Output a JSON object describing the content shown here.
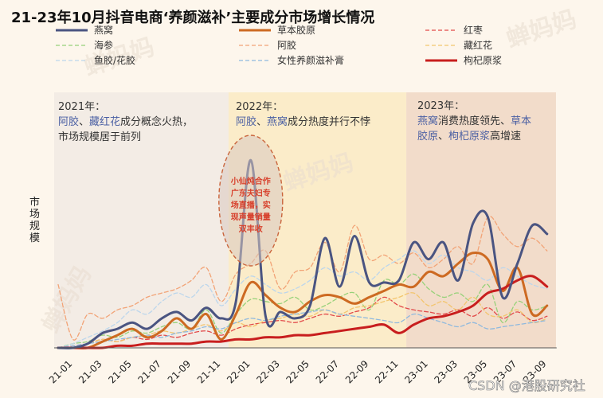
{
  "title": "21-23年10月抖音电商‘养颜滋补’主要成分市场增长情况",
  "ylabel": [
    "市",
    "场",
    "规",
    "模"
  ],
  "watermark": "CSDN @港股研究社",
  "bg_watermark": "蝉妈妈",
  "annotations": {
    "p2021": {
      "header": "2021年：",
      "segments": [
        [
          {
            "t": "阿胶",
            "c": "#4a5fa3"
          },
          {
            "t": "、",
            "c": "#333333"
          },
          {
            "t": "藏红花",
            "c": "#4a5fa3"
          },
          {
            "t": "成分概念火热，",
            "c": "#333333"
          }
        ],
        [
          {
            "t": "市场规模居于前列",
            "c": "#333333"
          }
        ]
      ]
    },
    "p2022": {
      "header": "2022年：",
      "segments": [
        [
          {
            "t": "阿胶",
            "c": "#4a5fa3"
          },
          {
            "t": "、",
            "c": "#333333"
          },
          {
            "t": "燕窝",
            "c": "#4a5fa3"
          },
          {
            "t": "成分热度并行不悖",
            "c": "#333333"
          }
        ]
      ]
    },
    "p2023": {
      "header": "2023年：",
      "segments": [
        [
          {
            "t": "燕窝",
            "c": "#4a5fa3"
          },
          {
            "t": "消费热度领先、",
            "c": "#333333"
          },
          {
            "t": "草本",
            "c": "#4a5fa3"
          }
        ],
        [
          {
            "t": "胶原",
            "c": "#4a5fa3"
          },
          {
            "t": "、",
            "c": "#333333"
          },
          {
            "t": "枸杞原浆",
            "c": "#4a5fa3"
          },
          {
            "t": "高增速",
            "c": "#333333"
          }
        ]
      ]
    },
    "bubble": [
      "小仙炖合作",
      "广东夫妇专",
      "场直播，实",
      "现声量销量",
      "双丰收"
    ]
  },
  "chart_data": {
    "type": "line",
    "title": "21-23年10月抖音电商‘养颜滋补’主要成分市场增长情况",
    "xlabel": "",
    "ylabel": "市场规模",
    "ylim": [
      0,
      100
    ],
    "x_count": 34,
    "x_ticks": [
      {
        "i": 0,
        "label": "21-01"
      },
      {
        "i": 2,
        "label": "21-03"
      },
      {
        "i": 4,
        "label": "21-05"
      },
      {
        "i": 6,
        "label": "21-07"
      },
      {
        "i": 8,
        "label": "21-09"
      },
      {
        "i": 10,
        "label": "21-11"
      },
      {
        "i": 12,
        "label": "22-01"
      },
      {
        "i": 14,
        "label": "22-03"
      },
      {
        "i": 16,
        "label": "22-05"
      },
      {
        "i": 18,
        "label": "22-07"
      },
      {
        "i": 20,
        "label": "22-09"
      },
      {
        "i": 22,
        "label": "22-11"
      },
      {
        "i": 24,
        "label": "23-01"
      },
      {
        "i": 26,
        "label": "23-03"
      },
      {
        "i": 28,
        "label": "23-05"
      },
      {
        "i": 30,
        "label": "23-07"
      },
      {
        "i": 32,
        "label": "23-09"
      }
    ],
    "periods": [
      {
        "name": "2021",
        "from": 0,
        "to": 11.5,
        "color": "#f3ece5"
      },
      {
        "name": "2022",
        "from": 11.5,
        "to": 23.5,
        "color": "#fbecc9"
      },
      {
        "name": "2023",
        "from": 23.5,
        "to": 33.6,
        "color": "#f2dcca"
      }
    ],
    "series": [
      {
        "name": "燕窝",
        "color": "#4a5481",
        "width": 3,
        "dash": "",
        "values": [
          0,
          0,
          2,
          7,
          9,
          12,
          9,
          14,
          17,
          13,
          19,
          14,
          22,
          89,
          15,
          17,
          14,
          20,
          52,
          29,
          53,
          31,
          31,
          32,
          50,
          42,
          50,
          32,
          59,
          62,
          24,
          40,
          58,
          54
        ]
      },
      {
        "name": "草本胶原",
        "color": "#cd6a22",
        "width": 3,
        "dash": "",
        "values": [
          0,
          0,
          0,
          3,
          6,
          9,
          5,
          8,
          14,
          9,
          16,
          4,
          16,
          31,
          25,
          19,
          17,
          22,
          25,
          24,
          21,
          24,
          27,
          30,
          29,
          36,
          34,
          40,
          45,
          42,
          27,
          38,
          16,
          20
        ]
      },
      {
        "name": "红枣",
        "color": "#e24a4a",
        "width": 1.3,
        "dash": "5,3",
        "values": [
          0,
          1,
          2,
          4,
          3,
          5,
          4,
          6,
          5,
          7,
          8,
          6,
          9,
          11,
          12,
          13,
          12,
          14,
          16,
          15,
          17,
          19,
          24,
          20,
          18,
          17,
          16,
          18,
          15,
          19,
          14,
          17,
          13,
          15
        ]
      },
      {
        "name": "海参",
        "color": "#96d179",
        "width": 1.3,
        "dash": "5,3",
        "values": [
          0,
          2,
          3,
          6,
          5,
          8,
          7,
          10,
          12,
          9,
          18,
          7,
          16,
          23,
          22,
          21,
          24,
          18,
          20,
          24,
          26,
          18,
          32,
          30,
          35,
          28,
          24,
          26,
          22,
          30,
          12,
          22,
          18,
          20
        ]
      },
      {
        "name": "阿胶",
        "color": "#f2a376",
        "width": 1.3,
        "dash": "5,3",
        "values": [
          30,
          4,
          16,
          14,
          18,
          20,
          24,
          26,
          28,
          32,
          38,
          22,
          35,
          40,
          46,
          28,
          36,
          38,
          50,
          36,
          58,
          42,
          44,
          40,
          45,
          38,
          42,
          48,
          40,
          62,
          54,
          48,
          52,
          46
        ]
      },
      {
        "name": "藏红花",
        "color": "#f3c56e",
        "width": 1.3,
        "dash": "5,3",
        "values": [
          0,
          1,
          2,
          4,
          3,
          5,
          6,
          8,
          7,
          9,
          11,
          8,
          12,
          10,
          13,
          14,
          16,
          15,
          18,
          16,
          19,
          20,
          22,
          24,
          26,
          20,
          22,
          18,
          24,
          16,
          15,
          18,
          12,
          14
        ]
      },
      {
        "name": "鱼胶/花胶",
        "color": "#bcd6ec",
        "width": 1.3,
        "dash": "5,3",
        "values": [
          0,
          2,
          5,
          8,
          12,
          18,
          16,
          22,
          26,
          24,
          30,
          20,
          28,
          34,
          30,
          26,
          28,
          32,
          38,
          34,
          36,
          32,
          38,
          42,
          46,
          40,
          44,
          38,
          36,
          32,
          38,
          34,
          30,
          28
        ]
      },
      {
        "name": "女性养颜滋补膏",
        "color": "#8fb9de",
        "width": 1.3,
        "dash": "5,3",
        "values": [
          0,
          1,
          2,
          3,
          4,
          5,
          6,
          5,
          7,
          8,
          10,
          9,
          12,
          14,
          13,
          15,
          16,
          17,
          18,
          16,
          15,
          14,
          13,
          12,
          16,
          14,
          12,
          10,
          12,
          9,
          10,
          11,
          12,
          13
        ]
      },
      {
        "name": "枸杞原浆",
        "color": "#c81e1e",
        "width": 3,
        "dash": "",
        "values": [
          0,
          0,
          0,
          0,
          1,
          1,
          2,
          2,
          2,
          2,
          3,
          3,
          4,
          4,
          5,
          5,
          6,
          6,
          7,
          8,
          9,
          10,
          11,
          7,
          11,
          14,
          15,
          17,
          20,
          26,
          28,
          32,
          34,
          29
        ]
      }
    ]
  }
}
